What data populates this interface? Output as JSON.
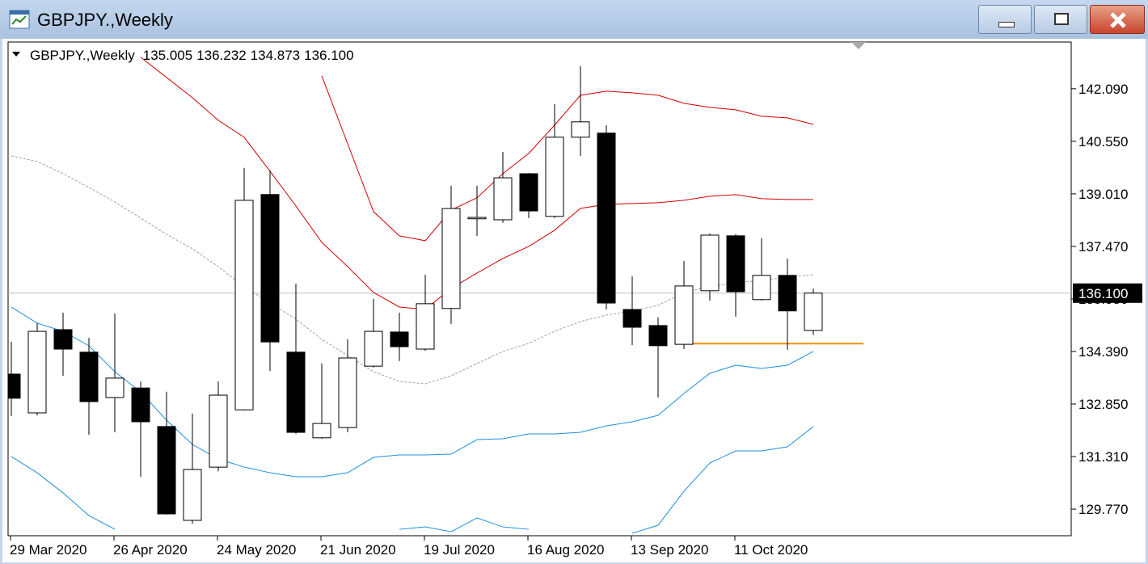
{
  "window": {
    "title": "GBPJPY.,Weekly"
  },
  "chart_data": {
    "type": "candlestick",
    "title": "GBPJPY.,Weekly",
    "header_values": [
      "135.005",
      "136.232",
      "134.873",
      "136.100"
    ],
    "categories": [
      "29 Mar 2020",
      null,
      null,
      null,
      "26 Apr 2020",
      null,
      null,
      null,
      "24 May 2020",
      null,
      null,
      null,
      "21 Jun 2020",
      null,
      null,
      null,
      "19 Jul 2020",
      null,
      null,
      null,
      "16 Aug 2020",
      null,
      null,
      null,
      "13 Sep 2020",
      null,
      null,
      null,
      "11 Oct 2020",
      null,
      null,
      null
    ],
    "open": [
      133.727,
      132.59,
      135.03,
      134.37,
      133.04,
      133.32,
      132.19,
      129.44,
      131.0,
      132.68,
      138.99,
      134.37,
      131.86,
      132.16,
      133.96,
      134.96,
      134.46,
      135.65,
      138.28,
      138.25,
      139.6,
      138.35,
      140.67,
      140.79,
      135.62,
      135.15,
      134.6,
      136.17,
      137.78,
      135.91,
      136.62,
      135.005
    ],
    "high": [
      134.675,
      135.22,
      135.53,
      134.79,
      135.5,
      133.51,
      133.21,
      132.57,
      133.51,
      139.77,
      139.7,
      136.38,
      134.04,
      134.75,
      135.93,
      135.53,
      136.64,
      139.25,
      139.25,
      140.24,
      139.62,
      141.64,
      142.75,
      141.02,
      136.59,
      135.39,
      137.04,
      137.85,
      137.83,
      137.71,
      137.11,
      136.232
    ],
    "low": [
      132.5,
      132.52,
      133.68,
      131.95,
      132.02,
      130.72,
      129.61,
      129.34,
      130.88,
      132.66,
      133.82,
      131.98,
      131.83,
      132.02,
      133.92,
      134.11,
      134.41,
      135.2,
      137.78,
      138.16,
      138.3,
      138.3,
      140.12,
      135.62,
      134.58,
      133.04,
      134.46,
      135.88,
      135.41,
      135.88,
      134.44,
      134.873
    ],
    "close": [
      133.02,
      134.98,
      134.46,
      132.92,
      133.61,
      132.33,
      129.63,
      130.93,
      133.11,
      138.82,
      134.67,
      132.02,
      132.28,
      134.2,
      134.98,
      134.53,
      135.79,
      138.58,
      138.32,
      139.48,
      138.51,
      140.67,
      141.12,
      135.81,
      135.1,
      134.56,
      136.31,
      137.8,
      136.14,
      136.62,
      135.58,
      136.1
    ],
    "up_color": "#ffffff",
    "down_color": "#000000",
    "series": [
      {
        "color": "#d00000",
        "style": "solid",
        "values": [
          null,
          null,
          null,
          null,
          null,
          null,
          null,
          null,
          null,
          null,
          null,
          null,
          142.469,
          140.479,
          138.489,
          137.778,
          137.636,
          138.536,
          138.892,
          139.602,
          140.195,
          141.024,
          141.9,
          142.019,
          141.971,
          141.9,
          141.664,
          141.545,
          141.474,
          141.284,
          141.237,
          141.048
        ]
      },
      {
        "color": "#d00000",
        "style": "solid",
        "values": [
          null,
          null,
          null,
          null,
          null,
          143.014,
          142.422,
          141.829,
          141.166,
          140.668,
          139.673,
          138.655,
          137.589,
          136.878,
          136.12,
          135.693,
          135.622,
          136.238,
          136.688,
          137.115,
          137.47,
          137.944,
          138.584,
          138.702,
          138.726,
          138.75,
          138.82,
          138.939,
          138.986,
          138.868,
          138.844,
          138.844
        ]
      },
      {
        "color": "#a0a0a0",
        "style": "dashed",
        "values": [
          140.124,
          139.958,
          139.602,
          139.2,
          138.773,
          138.299,
          137.825,
          137.399,
          136.878,
          136.286,
          135.812,
          135.338,
          134.746,
          134.272,
          133.798,
          133.513,
          133.442,
          133.679,
          134.035,
          134.39,
          134.627,
          134.982,
          135.266,
          135.456,
          135.575,
          135.74,
          136.12,
          136.286,
          136.404,
          136.475,
          136.57,
          136.641
        ]
      },
      {
        "color": "#1e8fdc",
        "style": "solid",
        "values": [
          135.693,
          135.219,
          134.982,
          134.556,
          133.798,
          133.206,
          132.376,
          131.666,
          131.239,
          131.002,
          130.836,
          130.718,
          130.718,
          130.836,
          131.287,
          131.357,
          131.357,
          131.381,
          131.808,
          131.832,
          131.974,
          131.974,
          132.021,
          132.211,
          132.329,
          132.519,
          133.158,
          133.75,
          133.987,
          133.893,
          133.987,
          134.39
        ]
      },
      {
        "color": "#1e8fdc",
        "style": "solid",
        "values": [
          131.31,
          130.836,
          130.244,
          129.581,
          129.178,
          null,
          null,
          null,
          null,
          null,
          null,
          null,
          null,
          null,
          null,
          129.178,
          129.249,
          129.107,
          129.51,
          129.249,
          129.178,
          null,
          null,
          null,
          129.06,
          129.297,
          130.291,
          131.121,
          131.476,
          131.476,
          131.594,
          132.187
        ]
      }
    ],
    "hline": {
      "value": 134.62,
      "color": "#f0900a"
    },
    "last_price": {
      "value": 136.1,
      "label": "136.100"
    },
    "ylim": [
      128.99,
      143.46
    ],
    "yticks": [
      {
        "value": 142.09,
        "label": "142.090"
      },
      {
        "value": 140.55,
        "label": "140.550"
      },
      {
        "value": 139.01,
        "label": "139.010"
      },
      {
        "value": 137.47,
        "label": "137.470"
      },
      {
        "value": 135.93,
        "label": "135.930"
      },
      {
        "value": 134.39,
        "label": "134.390"
      },
      {
        "value": 132.85,
        "label": "132.850"
      },
      {
        "value": 131.31,
        "label": "131.310"
      },
      {
        "value": 129.77,
        "label": "129.770"
      }
    ]
  }
}
